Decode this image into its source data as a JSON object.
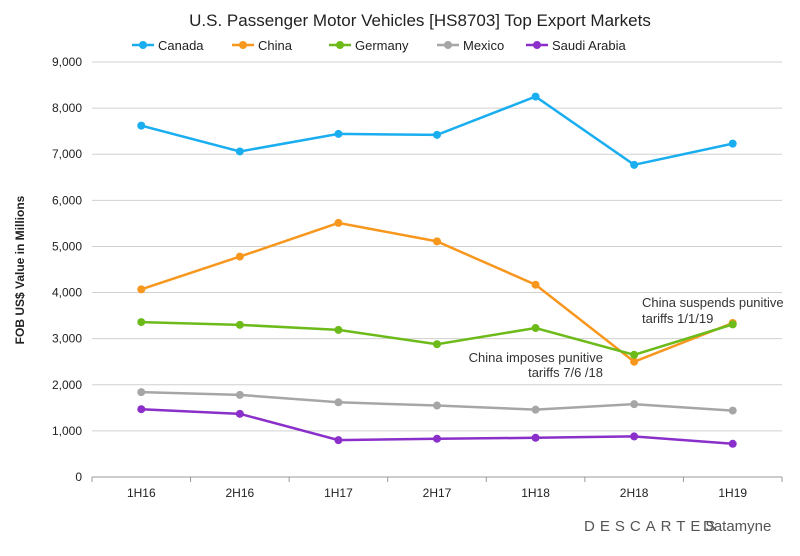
{
  "chart_data": {
    "type": "line",
    "title": "U.S. Passenger Motor Vehicles [HS8703] Top Export Markets",
    "ylabel": "FOB US$ Value in Millions",
    "xlabel": "",
    "categories": [
      "1H16",
      "2H16",
      "1H17",
      "2H17",
      "1H18",
      "2H18",
      "1H19"
    ],
    "ylim": [
      0,
      9000
    ],
    "yticks": [
      0,
      1000,
      2000,
      3000,
      4000,
      5000,
      6000,
      7000,
      8000,
      9000
    ],
    "ytick_labels": [
      "0",
      "1,000",
      "2,000",
      "3,000",
      "4,000",
      "5,000",
      "6,000",
      "7,000",
      "8,000",
      "9,000"
    ],
    "grid": true,
    "legend_position": "top",
    "series": [
      {
        "name": "Canada",
        "color": "#1aaef0",
        "values": [
          7620,
          7060,
          7440,
          7420,
          8250,
          6770,
          7230
        ]
      },
      {
        "name": "China",
        "color": "#f7971e",
        "values": [
          4070,
          4780,
          5510,
          5110,
          4170,
          2500,
          3340
        ]
      },
      {
        "name": "Germany",
        "color": "#6cbb1a",
        "values": [
          3360,
          3300,
          3190,
          2880,
          3230,
          2650,
          3310
        ]
      },
      {
        "name": "Mexico",
        "color": "#a6a6a6",
        "values": [
          1840,
          1780,
          1620,
          1550,
          1460,
          1580,
          1440
        ]
      },
      {
        "name": "Saudi Arabia",
        "color": "#8a2fc9",
        "values": [
          1470,
          1370,
          800,
          830,
          850,
          880,
          720
        ]
      }
    ],
    "annotations": [
      {
        "lines": [
          "China imposes punitive",
          "tariffs 7/6 /18"
        ]
      },
      {
        "lines": [
          "China suspends punitive",
          "tariffs 1/1/19"
        ]
      }
    ]
  },
  "logo": {
    "text": "DESCARTES",
    "suffix": "Datamyne"
  }
}
